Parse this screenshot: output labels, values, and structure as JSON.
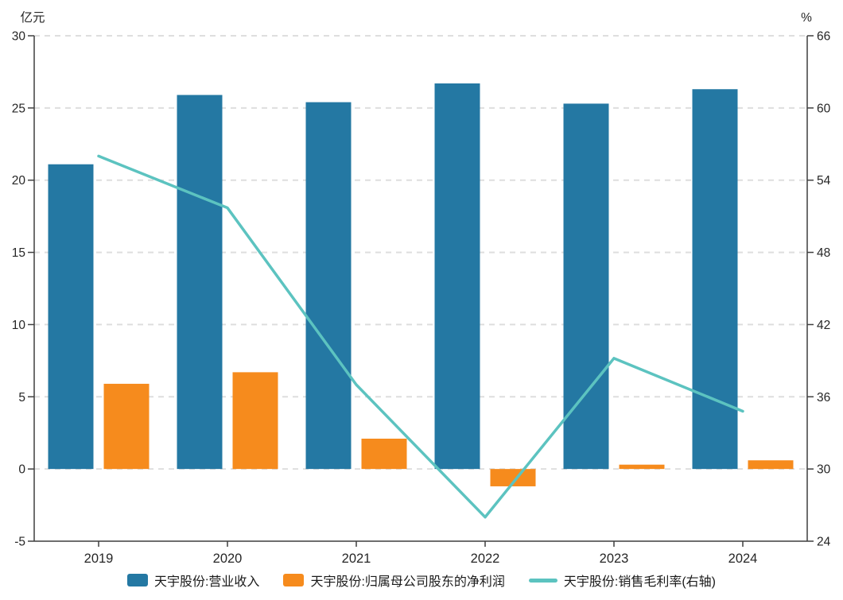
{
  "chart_data": {
    "type": "bar+line combo",
    "categories": [
      "2019",
      "2020",
      "2021",
      "2022",
      "2023",
      "2024"
    ],
    "series": [
      {
        "id": "revenue",
        "name": "天宇股份:营业收入",
        "type": "bar",
        "axis": "left",
        "color": "#2478a3",
        "values": [
          21.1,
          25.9,
          25.4,
          26.7,
          25.3,
          26.3
        ]
      },
      {
        "id": "net-profit",
        "name": "天宇股份:归属母公司股东的净利润",
        "type": "bar",
        "axis": "left",
        "color": "#f68b1d",
        "values": [
          5.9,
          6.7,
          2.1,
          -1.2,
          0.3,
          0.6
        ]
      },
      {
        "id": "gross-margin",
        "name": "天宇股份:销售毛利率(右轴)",
        "type": "line",
        "axis": "right",
        "color": "#5cc3c0",
        "values": [
          56.0,
          51.7,
          37.0,
          26.0,
          39.2,
          34.8
        ]
      }
    ],
    "left_axis": {
      "label": "亿元",
      "min": -5,
      "max": 30,
      "ticks": [
        30,
        25,
        20,
        15,
        10,
        5,
        0,
        -5
      ]
    },
    "right_axis": {
      "label": "%",
      "min": 24,
      "max": 66,
      "ticks": [
        66,
        60,
        54,
        48,
        42,
        36,
        30,
        24
      ]
    },
    "grid": true,
    "grid_color": "#dedede",
    "axis_color": "#3f3f3f",
    "text_color": "#262626",
    "legend_position": "bottom"
  }
}
